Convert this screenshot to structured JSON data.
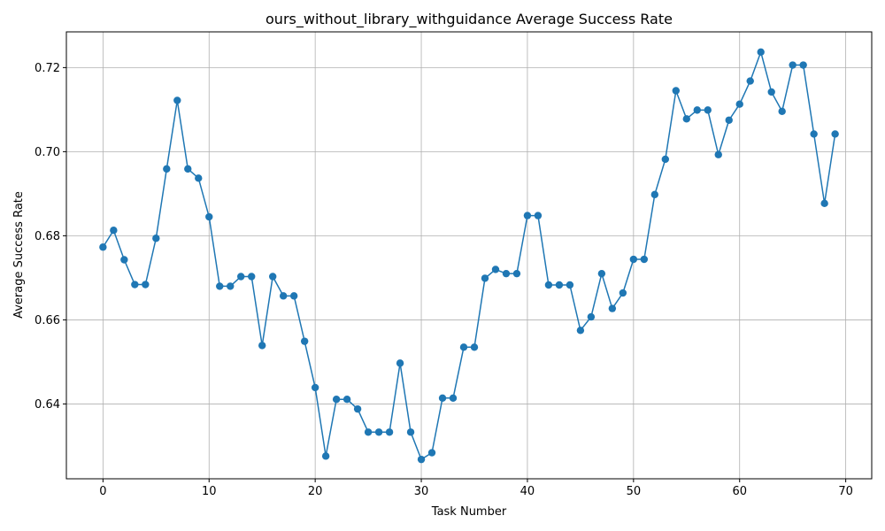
{
  "chart_data": {
    "type": "line",
    "title": "ours_without_library_withguidance Average Success Rate",
    "xlabel": "Task Number",
    "ylabel": "Average Success Rate",
    "xlim": [
      -3.45,
      72.45
    ],
    "ylim": [
      0.6222,
      0.7285
    ],
    "xticks": [
      0,
      10,
      20,
      30,
      40,
      50,
      60,
      70
    ],
    "yticks": [
      0.64,
      0.66,
      0.68,
      0.7,
      0.72
    ],
    "ytick_labels": [
      "0.64",
      "0.66",
      "0.68",
      "0.70",
      "0.72"
    ],
    "grid": true,
    "color": "#1f77b4",
    "marker": "circle",
    "series": [
      {
        "x": [
          0,
          1,
          2,
          3,
          4,
          5,
          6,
          7,
          8,
          9,
          10,
          11,
          12,
          13,
          14,
          15,
          16,
          17,
          18,
          19,
          20,
          21,
          22,
          23,
          24,
          25,
          26,
          27,
          28,
          29,
          30,
          31,
          32,
          33,
          34,
          35,
          36,
          37,
          38,
          39,
          40,
          41,
          42,
          43,
          44,
          45,
          46,
          47,
          48,
          49,
          50,
          51,
          52,
          53,
          54,
          55,
          56,
          57,
          58,
          59,
          60,
          61,
          62,
          63,
          64,
          65,
          66,
          67,
          68,
          69
        ],
        "values": [
          0.6773,
          0.6813,
          0.6743,
          0.6684,
          0.6684,
          0.6794,
          0.6959,
          0.7122,
          0.6959,
          0.6937,
          0.6845,
          0.668,
          0.668,
          0.6703,
          0.6703,
          0.6539,
          0.6703,
          0.6657,
          0.6657,
          0.6549,
          0.6439,
          0.6276,
          0.6411,
          0.6411,
          0.6388,
          0.6333,
          0.6333,
          0.6333,
          0.6497,
          0.6333,
          0.6268,
          0.6284,
          0.6414,
          0.6414,
          0.6535,
          0.6535,
          0.6699,
          0.672,
          0.671,
          0.671,
          0.6848,
          0.6848,
          0.6683,
          0.6683,
          0.6683,
          0.6575,
          0.6607,
          0.671,
          0.6627,
          0.6664,
          0.6744,
          0.6744,
          0.6898,
          0.6982,
          0.7145,
          0.7078,
          0.7099,
          0.7099,
          0.6993,
          0.7075,
          0.7113,
          0.7168,
          0.7237,
          0.7142,
          0.7096,
          0.7206,
          0.7206,
          0.7042,
          0.6877,
          0.7042
        ]
      }
    ]
  }
}
